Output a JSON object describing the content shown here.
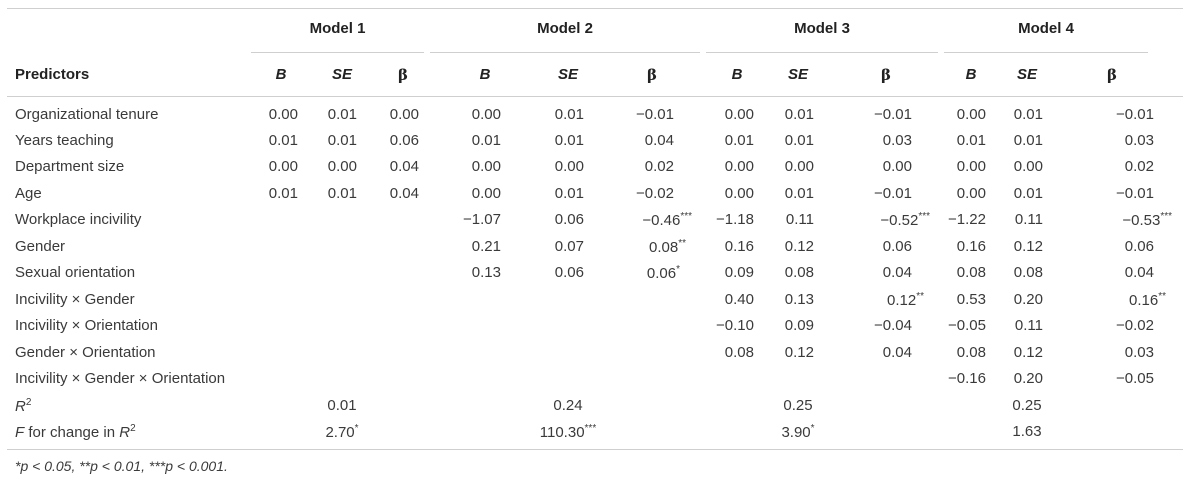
{
  "table": {
    "predictors_header": "Predictors",
    "models": [
      "Model 1",
      "Model 2",
      "Model 3",
      "Model 4"
    ],
    "subheaders": [
      "B",
      "SE",
      "β"
    ],
    "rows": [
      {
        "label": "Organizational tenure",
        "values": [
          "0.00",
          "0.01",
          "0.00",
          "0.00",
          "0.01",
          "−0.01",
          "0.00",
          "0.01",
          "−0.01",
          "0.00",
          "0.01",
          "−0.01"
        ]
      },
      {
        "label": "Years teaching",
        "values": [
          "0.01",
          "0.01",
          "0.06",
          "0.01",
          "0.01",
          "0.04",
          "0.01",
          "0.01",
          "0.03",
          "0.01",
          "0.01",
          "0.03"
        ]
      },
      {
        "label": "Department size",
        "values": [
          "0.00",
          "0.00",
          "0.04",
          "0.00",
          "0.00",
          "0.02",
          "0.00",
          "0.00",
          "0.00",
          "0.00",
          "0.00",
          "0.02"
        ]
      },
      {
        "label": "Age",
        "values": [
          "0.01",
          "0.01",
          "0.04",
          "0.00",
          "0.01",
          "−0.02",
          "0.00",
          "0.01",
          "−0.01",
          "0.00",
          "0.01",
          "−0.01"
        ]
      },
      {
        "label": "Workplace incivility",
        "values": [
          "",
          "",
          "",
          "−1.07",
          "0.06",
          "−0.46***",
          "−1.18",
          "0.11",
          "−0.52***",
          "−1.22",
          "0.11",
          "−0.53***"
        ]
      },
      {
        "label": "Gender",
        "values": [
          "",
          "",
          "",
          "0.21",
          "0.07",
          "0.08**",
          "0.16",
          "0.12",
          "0.06",
          "0.16",
          "0.12",
          "0.06"
        ]
      },
      {
        "label": "Sexual orientation",
        "values": [
          "",
          "",
          "",
          "0.13",
          "0.06",
          "0.06*",
          "0.09",
          "0.08",
          "0.04",
          "0.08",
          "0.08",
          "0.04"
        ]
      },
      {
        "label": "Incivility × Gender",
        "values": [
          "",
          "",
          "",
          "",
          "",
          "",
          "0.40",
          "0.13",
          "0.12**",
          "0.53",
          "0.20",
          "0.16**"
        ]
      },
      {
        "label": "Incivility × Orientation",
        "values": [
          "",
          "",
          "",
          "",
          "",
          "",
          "−0.10",
          "0.09",
          "−0.04",
          "−0.05",
          "0.11",
          "−0.02"
        ]
      },
      {
        "label": "Gender × Orientation",
        "values": [
          "",
          "",
          "",
          "",
          "",
          "",
          "0.08",
          "0.12",
          "0.04",
          "0.08",
          "0.12",
          "0.03"
        ]
      },
      {
        "label": "Incivility × Gender × Orientation",
        "values": [
          "",
          "",
          "",
          "",
          "",
          "",
          "",
          "",
          "",
          "−0.16",
          "0.20",
          "−0.05"
        ]
      }
    ],
    "r2_row": {
      "label_main": "R",
      "label_sup": "2",
      "values": [
        "0.01",
        "0.24",
        "0.25",
        "0.25"
      ]
    },
    "f_row": {
      "label_main": "F",
      "label_rest": " for change in ",
      "label_r": "R",
      "label_sup": "2",
      "values": [
        "2.70*",
        "110.30***",
        "3.90*",
        "1.63"
      ]
    }
  },
  "footnote": "*p < 0.05, **p < 0.01, ***p < 0.001."
}
